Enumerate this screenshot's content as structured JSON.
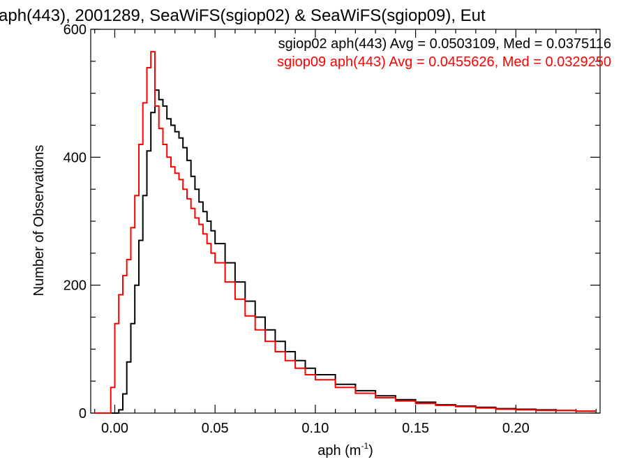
{
  "chart_data": {
    "type": "line",
    "title": "aph(443), 2001289, SeaWiFS(sgiop02) & SeaWiFS(sgiop09), Eut",
    "xlabel_main": "aph (m",
    "xlabel_sup": "-1",
    "xlabel_close": ")",
    "ylabel": "Number of Observations",
    "xlim": [
      -0.012,
      0.242
    ],
    "ylim": [
      0,
      600
    ],
    "x_ticks": [
      0.0,
      0.05,
      0.1,
      0.15,
      0.2
    ],
    "x_tick_labels": [
      "0.00",
      "0.05",
      "0.10",
      "0.15",
      "0.20"
    ],
    "y_ticks": [
      0,
      200,
      400,
      600
    ],
    "y_tick_labels": [
      "0",
      "200",
      "400",
      "600"
    ],
    "legend_position": "top-right",
    "series": [
      {
        "name": "sgiop02 aph(443) Avg = 0.0503109, Med = 0.0375116",
        "color": "#000000",
        "points": [
          [
            -0.01,
            0
          ],
          [
            0.0,
            0
          ],
          [
            0.002,
            5
          ],
          [
            0.004,
            30
          ],
          [
            0.006,
            80
          ],
          [
            0.008,
            140
          ],
          [
            0.01,
            200
          ],
          [
            0.012,
            270
          ],
          [
            0.014,
            340
          ],
          [
            0.016,
            410
          ],
          [
            0.018,
            470
          ],
          [
            0.02,
            505
          ],
          [
            0.022,
            490
          ],
          [
            0.024,
            480
          ],
          [
            0.026,
            460
          ],
          [
            0.028,
            450
          ],
          [
            0.03,
            440
          ],
          [
            0.032,
            430
          ],
          [
            0.034,
            415
          ],
          [
            0.036,
            395
          ],
          [
            0.038,
            370
          ],
          [
            0.04,
            350
          ],
          [
            0.042,
            330
          ],
          [
            0.044,
            315
          ],
          [
            0.046,
            300
          ],
          [
            0.048,
            285
          ],
          [
            0.05,
            265
          ],
          [
            0.055,
            235
          ],
          [
            0.06,
            205
          ],
          [
            0.065,
            175
          ],
          [
            0.07,
            150
          ],
          [
            0.075,
            130
          ],
          [
            0.08,
            112
          ],
          [
            0.085,
            96
          ],
          [
            0.09,
            82
          ],
          [
            0.095,
            70
          ],
          [
            0.1,
            60
          ],
          [
            0.11,
            45
          ],
          [
            0.12,
            35
          ],
          [
            0.13,
            27
          ],
          [
            0.14,
            21
          ],
          [
            0.15,
            17
          ],
          [
            0.16,
            13
          ],
          [
            0.17,
            11
          ],
          [
            0.18,
            9
          ],
          [
            0.19,
            7
          ],
          [
            0.2,
            6
          ],
          [
            0.21,
            5
          ],
          [
            0.22,
            4
          ],
          [
            0.23,
            3
          ],
          [
            0.24,
            3
          ]
        ]
      },
      {
        "name": "sgiop09 aph(443) Avg = 0.0455626, Med = 0.0329250",
        "color": "#ff0000",
        "points": [
          [
            -0.01,
            0
          ],
          [
            -0.003,
            0
          ],
          [
            -0.002,
            40
          ],
          [
            0.0,
            140
          ],
          [
            0.002,
            185
          ],
          [
            0.004,
            215
          ],
          [
            0.006,
            240
          ],
          [
            0.008,
            290
          ],
          [
            0.01,
            340
          ],
          [
            0.012,
            420
          ],
          [
            0.014,
            485
          ],
          [
            0.016,
            540
          ],
          [
            0.018,
            565
          ],
          [
            0.02,
            480
          ],
          [
            0.022,
            445
          ],
          [
            0.024,
            420
          ],
          [
            0.026,
            400
          ],
          [
            0.028,
            385
          ],
          [
            0.03,
            375
          ],
          [
            0.032,
            365
          ],
          [
            0.034,
            350
          ],
          [
            0.036,
            335
          ],
          [
            0.038,
            320
          ],
          [
            0.04,
            305
          ],
          [
            0.042,
            295
          ],
          [
            0.044,
            280
          ],
          [
            0.046,
            265
          ],
          [
            0.048,
            250
          ],
          [
            0.05,
            235
          ],
          [
            0.055,
            205
          ],
          [
            0.06,
            178
          ],
          [
            0.065,
            152
          ],
          [
            0.07,
            130
          ],
          [
            0.075,
            112
          ],
          [
            0.08,
            96
          ],
          [
            0.085,
            82
          ],
          [
            0.09,
            70
          ],
          [
            0.095,
            60
          ],
          [
            0.1,
            52
          ],
          [
            0.11,
            40
          ],
          [
            0.12,
            31
          ],
          [
            0.13,
            24
          ],
          [
            0.14,
            19
          ],
          [
            0.15,
            15
          ],
          [
            0.16,
            12
          ],
          [
            0.17,
            10
          ],
          [
            0.18,
            8
          ],
          [
            0.19,
            6
          ],
          [
            0.2,
            5
          ],
          [
            0.21,
            4
          ],
          [
            0.22,
            4
          ],
          [
            0.23,
            3
          ],
          [
            0.24,
            3
          ]
        ]
      }
    ]
  }
}
